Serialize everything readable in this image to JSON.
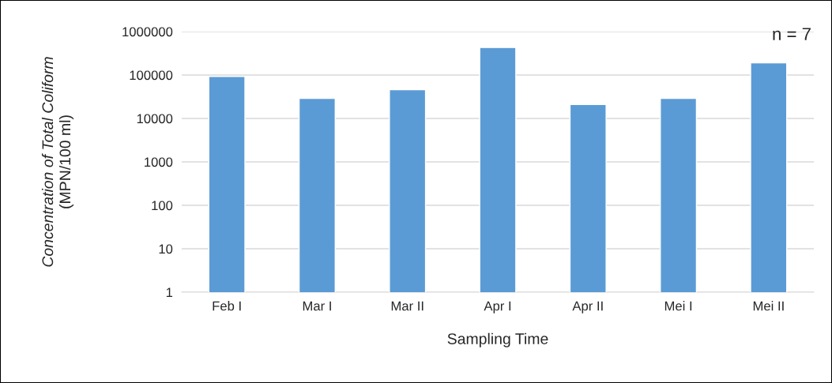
{
  "chart_data": {
    "type": "bar",
    "xlabel": "Sampling Time",
    "ylabel": "Concentration of Total Coliform\n(MPN/100 ml)",
    "categories": [
      "Feb I",
      "Mar I",
      "Mar II",
      "Apr I",
      "Apr II",
      "Mei I",
      "Mei II"
    ],
    "values": [
      93000,
      29000,
      46000,
      430000,
      21000,
      29000,
      190000
    ],
    "color": "#5b9bd5",
    "log": true,
    "ylim": [
      1,
      1000000
    ],
    "yticks": [
      1,
      10,
      100,
      1000,
      10000,
      100000,
      1000000
    ],
    "grid": "y",
    "annotations": [
      "n = 7"
    ]
  }
}
